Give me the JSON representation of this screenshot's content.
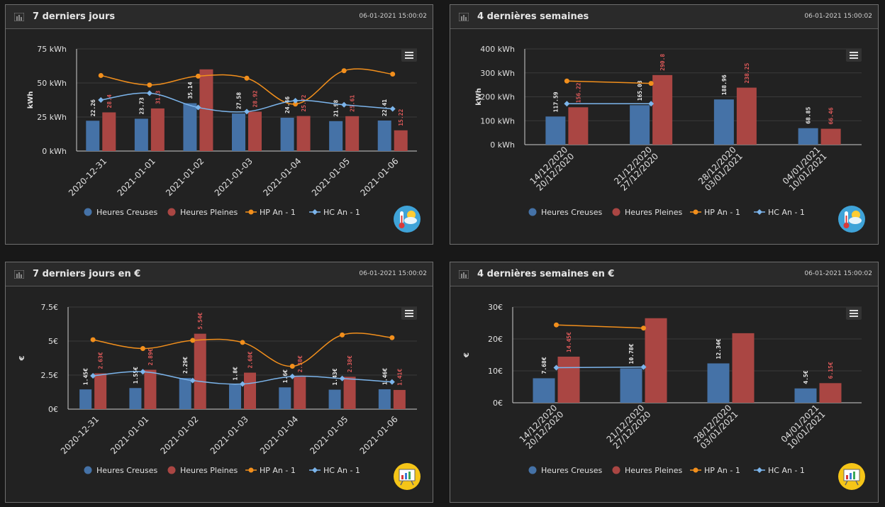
{
  "panels": [
    {
      "title": "7 derniers jours",
      "timestamp": "06-01-2021 15:00:02",
      "icon": "thermometer-weather-icon"
    },
    {
      "title": "4 dernières semaines",
      "timestamp": "06-01-2021 15:00:02",
      "icon": "thermometer-weather-icon"
    },
    {
      "title": "7 derniers jours en €",
      "timestamp": "06-01-2021 15:00:02",
      "icon": "presentation-chart-icon"
    },
    {
      "title": "4 dernières semaines en €",
      "timestamp": "06-01-2021 15:00:02",
      "icon": "presentation-chart-icon"
    }
  ],
  "colors": {
    "hc": "#4572a7",
    "hp": "#aa4643",
    "hp_prev": "#f28f1c",
    "hc_prev": "#7cb5ec"
  },
  "chart_data": [
    {
      "type": "bar",
      "title": "7 derniers jours",
      "ylabel": "kWh",
      "ylim": [
        0,
        75
      ],
      "yticks": [
        "0 kWh",
        "25 kWh",
        "50 kWh",
        "75 kWh"
      ],
      "ytick_values": [
        0,
        25,
        50,
        75
      ],
      "categories": [
        "2020-12-31",
        "2021-01-01",
        "2021-01-02",
        "2021-01-03",
        "2021-01-04",
        "2021-01-05",
        "2021-01-06"
      ],
      "series": [
        {
          "name": "Heures Creuses",
          "kind": "bar",
          "values": [
            22.26,
            23.73,
            35.14,
            27.58,
            24.46,
            21.98,
            22.41
          ],
          "labels": [
            "22.26",
            "23.73",
            "35.14",
            "27.58",
            "24.46",
            "21.98",
            "22.41"
          ]
        },
        {
          "name": "Heures Pleines",
          "kind": "bar",
          "values": [
            28.4,
            31.3,
            60,
            28.92,
            25.72,
            25.61,
            15.22
          ],
          "labels": [
            "28.4",
            "31.3",
            "",
            "28.92",
            "25.72",
            "25.61",
            "15.22"
          ]
        },
        {
          "name": "HP An - 1",
          "kind": "line",
          "values": [
            55.5,
            48.5,
            55,
            53.5,
            34.5,
            59,
            56.5
          ]
        },
        {
          "name": "HC An - 1",
          "kind": "line",
          "values": [
            37.5,
            42.5,
            32,
            29,
            37,
            34,
            31
          ]
        }
      ]
    },
    {
      "type": "bar",
      "title": "4 dernières semaines",
      "ylabel": "kWh",
      "ylim": [
        0,
        400
      ],
      "yticks": [
        "0 kWh",
        "100 kWh",
        "200 kWh",
        "300 kWh",
        "400 kWh"
      ],
      "ytick_values": [
        0,
        100,
        200,
        300,
        400
      ],
      "categories": [
        [
          "14/12/2020",
          "20/12/2020"
        ],
        [
          "21/12/2020",
          "27/12/2020"
        ],
        [
          "28/12/2020",
          "03/01/2021"
        ],
        [
          "04/01/2021",
          "10/01/2021"
        ]
      ],
      "series": [
        {
          "name": "Heures Creuses",
          "kind": "bar",
          "values": [
            117.59,
            165.03,
            188.96,
            68.85
          ],
          "labels": [
            "117.59",
            "165.03",
            "188.96",
            "68.85"
          ]
        },
        {
          "name": "Heures Pleines",
          "kind": "bar",
          "values": [
            156.22,
            290.8,
            238.25,
            66.46
          ],
          "labels": [
            "156.22",
            "290.8",
            "238.25",
            "66.46"
          ]
        },
        {
          "name": "HP An - 1",
          "kind": "line",
          "values": [
            266,
            256,
            null,
            null
          ]
        },
        {
          "name": "HC An - 1",
          "kind": "line",
          "values": [
            171,
            171,
            null,
            null
          ]
        }
      ]
    },
    {
      "type": "bar",
      "title": "7 derniers jours en €",
      "ylabel": "€",
      "ylim": [
        0,
        7.5
      ],
      "yticks": [
        "0€",
        "2.5€",
        "5€",
        "7.5€"
      ],
      "ytick_values": [
        0,
        2.5,
        5,
        7.5
      ],
      "categories": [
        "2020-12-31",
        "2021-01-01",
        "2021-01-02",
        "2021-01-03",
        "2021-01-04",
        "2021-01-05",
        "2021-01-06"
      ],
      "series": [
        {
          "name": "Heures Creuses",
          "kind": "bar",
          "values": [
            1.45,
            1.55,
            2.29,
            1.8,
            1.6,
            1.43,
            1.46
          ],
          "labels": [
            "1.45€",
            "1.55€",
            "2.29€",
            "1.8€",
            "1.6€",
            "1.43€",
            "1.46€"
          ]
        },
        {
          "name": "Heures Pleines",
          "kind": "bar",
          "values": [
            2.63,
            2.89,
            5.54,
            2.68,
            2.38,
            2.38,
            1.41
          ],
          "labels": [
            "2.63€",
            "2.89€",
            "5.54€",
            "2.68€",
            "2.38€",
            "2.38€",
            "1.41€"
          ]
        },
        {
          "name": "HP An - 1",
          "kind": "line",
          "values": [
            5.1,
            4.45,
            5.05,
            4.9,
            3.15,
            5.45,
            5.25
          ]
        },
        {
          "name": "HC An - 1",
          "kind": "line",
          "values": [
            2.45,
            2.75,
            2.1,
            1.85,
            2.4,
            2.25,
            2.0
          ]
        }
      ]
    },
    {
      "type": "bar",
      "title": "4 dernières semaines en €",
      "ylabel": "€",
      "ylim": [
        0,
        30
      ],
      "yticks": [
        "0€",
        "10€",
        "20€",
        "30€"
      ],
      "ytick_values": [
        0,
        10,
        20,
        30
      ],
      "categories": [
        [
          "14/12/2020",
          "20/12/2020"
        ],
        [
          "21/12/2020",
          "27/12/2020"
        ],
        [
          "28/12/2020",
          "03/01/2021"
        ],
        [
          "04/01/2021",
          "10/01/2021"
        ]
      ],
      "series": [
        {
          "name": "Heures Creuses",
          "kind": "bar",
          "values": [
            7.68,
            10.78,
            12.34,
            4.5
          ],
          "labels": [
            "7.68€",
            "10.78€",
            "12.34€",
            "4.5€"
          ]
        },
        {
          "name": "Heures Pleines",
          "kind": "bar",
          "values": [
            14.45,
            26.5,
            21.8,
            6.15
          ],
          "labels": [
            "14.45€",
            "",
            "",
            "6.15€"
          ]
        },
        {
          "name": "HP An - 1",
          "kind": "line",
          "values": [
            24.4,
            23.4,
            null,
            null
          ]
        },
        {
          "name": "HC An - 1",
          "kind": "line",
          "values": [
            11.0,
            11.2,
            null,
            null
          ]
        }
      ]
    }
  ]
}
